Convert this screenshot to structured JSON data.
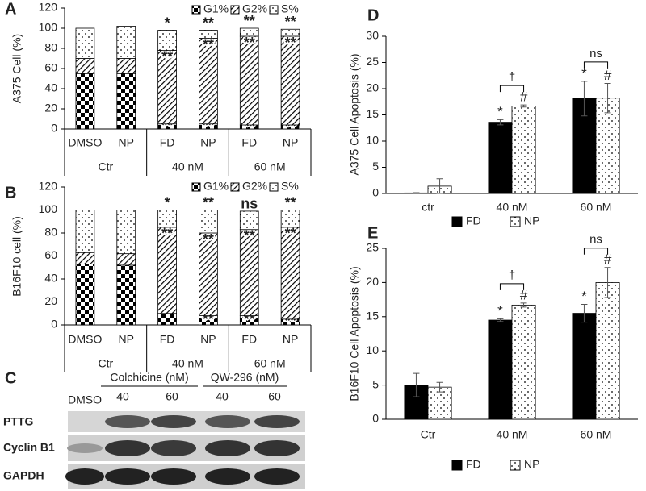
{
  "chart_data": [
    {
      "type": "stacked_bar",
      "panel_label": "A",
      "y_label": "A375 Cell (%)",
      "categories": [
        "DMSO",
        "NP",
        "FD",
        "NP",
        "FD",
        "NP"
      ],
      "group_labels": [
        "Ctr",
        "40 nM",
        "60 nM"
      ],
      "series": [
        {
          "name": "G1%",
          "color": "#000000",
          "pattern": "checker",
          "values": [
            55,
            55,
            5,
            5,
            4,
            4
          ],
          "annotations": [
            null,
            null,
            "**",
            "**",
            "**",
            "**"
          ]
        },
        {
          "name": "G2%",
          "color": "#000000",
          "pattern": "stripes",
          "values": [
            15,
            15,
            73,
            85,
            88,
            88
          ],
          "annotations": [
            null,
            null,
            "**",
            "**",
            "**",
            "**"
          ]
        },
        {
          "name": "S%",
          "color": "#000000",
          "pattern": "dots",
          "values": [
            30,
            32,
            20,
            8,
            8,
            7
          ],
          "annotations": [
            null,
            null,
            "*",
            "**",
            "**",
            "**"
          ]
        }
      ],
      "ylim": [
        0,
        120
      ],
      "yticks": [
        0,
        20,
        40,
        60,
        80,
        100,
        120
      ]
    },
    {
      "type": "stacked_bar",
      "panel_label": "B",
      "y_label": "B16F10 cell (%)",
      "categories": [
        "DMSO",
        "NP",
        "FD",
        "NP",
        "FD",
        "NP"
      ],
      "group_labels": [
        "Ctr",
        "40 nM",
        "60 nM"
      ],
      "series": [
        {
          "name": "G1%",
          "color": "#000000",
          "pattern": "checker",
          "values": [
            53,
            52,
            10,
            8,
            8,
            5
          ],
          "annotations": [
            null,
            null,
            null,
            "**",
            "**",
            "**"
          ]
        },
        {
          "name": "G2%",
          "color": "#000000",
          "pattern": "stripes",
          "values": [
            10,
            10,
            75,
            72,
            75,
            80
          ],
          "annotations": [
            null,
            null,
            "**",
            "**",
            "**",
            "**"
          ]
        },
        {
          "name": "S%",
          "color": "#000000",
          "pattern": "dots",
          "values": [
            37,
            38,
            15,
            20,
            16,
            15
          ],
          "annotations": [
            null,
            null,
            "*",
            "**",
            "ns",
            "**"
          ]
        }
      ],
      "ylim": [
        0,
        120
      ],
      "yticks": [
        0,
        20,
        40,
        60,
        80,
        100,
        120
      ]
    },
    {
      "type": "grouped_bar",
      "panel_label": "D",
      "y_label": "A375 Cell Apoptosis (%)",
      "categories": [
        "ctr",
        "40 nM",
        "60 nM"
      ],
      "comparisons": [
        null,
        "†",
        "ns"
      ],
      "series": [
        {
          "name": "FD",
          "color": "#000000",
          "pattern": "solid",
          "values": [
            0.1,
            13.6,
            18.1
          ],
          "errors": [
            0.05,
            0.5,
            3.3
          ],
          "annotations": [
            null,
            "*",
            "*"
          ]
        },
        {
          "name": "NP",
          "color": "#000000",
          "pattern": "dots",
          "values": [
            1.4,
            16.7,
            18.2
          ],
          "errors": [
            1.4,
            0.2,
            2.8
          ],
          "annotations": [
            null,
            "#",
            "#"
          ]
        }
      ],
      "ylim": [
        0,
        30
      ],
      "yticks": [
        0,
        5,
        10,
        15,
        20,
        25,
        30
      ]
    },
    {
      "type": "grouped_bar",
      "panel_label": "E",
      "y_label": "B16F10 Cell Apoptosis (%)",
      "categories": [
        "Ctr",
        "40 nM",
        "60 nM"
      ],
      "comparisons": [
        null,
        "†",
        "ns"
      ],
      "series": [
        {
          "name": "FD",
          "color": "#000000",
          "pattern": "solid",
          "values": [
            5.0,
            14.5,
            15.5
          ],
          "errors": [
            1.7,
            0.2,
            1.3
          ],
          "annotations": [
            null,
            "*",
            "*"
          ]
        },
        {
          "name": "NP",
          "color": "#000000",
          "pattern": "dots",
          "values": [
            4.7,
            16.7,
            20.0
          ],
          "errors": [
            0.7,
            0.3,
            2.2
          ],
          "annotations": [
            null,
            "#",
            "#"
          ]
        }
      ],
      "ylim": [
        0,
        25
      ],
      "yticks": [
        0,
        5,
        10,
        15,
        20,
        25
      ]
    }
  ],
  "blot": {
    "panel_label": "C",
    "treatments": [
      "Colchicine (nM)",
      "QW-296 (nM)"
    ],
    "lanes": [
      "DMSO",
      "40",
      "60",
      "40",
      "60"
    ],
    "rows": [
      "PTTG",
      "Cyclin B1",
      "GAPDH"
    ]
  }
}
